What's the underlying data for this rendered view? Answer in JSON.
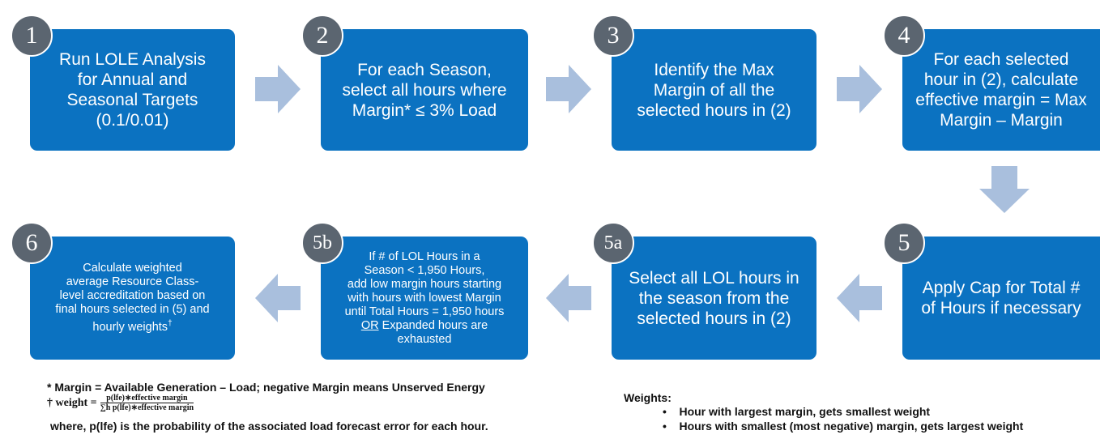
{
  "steps": [
    {
      "number": "1",
      "lines": [
        "Run LOLE Analysis",
        "for Annual and",
        "Seasonal Targets",
        "(0.1/0.01)"
      ]
    },
    {
      "number": "2",
      "lines": [
        "For each Season,",
        "select all hours where",
        "Margin* ≤ 3% Load"
      ]
    },
    {
      "number": "3",
      "lines": [
        "Identify the Max",
        "Margin of all the",
        "selected hours in (2)"
      ]
    },
    {
      "number": "4",
      "lines": [
        "For each selected",
        "hour in (2), calculate",
        "effective margin = Max",
        "Margin – Margin"
      ]
    },
    {
      "number": "5",
      "lines": [
        "Apply Cap for Total #",
        "of Hours if necessary"
      ]
    },
    {
      "number": "5a",
      "lines": [
        "Select all LOL hours in",
        "the season from the",
        "selected hours in (2)"
      ]
    },
    {
      "number": "5b",
      "lines": [
        "If # of LOL Hours in a",
        "Season < 1,950 Hours,",
        "add low margin hours starting",
        "with hours with lowest Margin",
        "until Total Hours = 1,950 hours",
        "OR",
        "Expanded hours are",
        "exhausted"
      ]
    },
    {
      "number": "6",
      "lines": [
        "Calculate weighted",
        "average Resource Class-",
        "level accreditation based on",
        "final hours selected in (5) and",
        "hourly weights",
        "†"
      ]
    }
  ],
  "footnotes": {
    "margin_note": "* Margin = Available Generation – Load; negative Margin means Unserved Energy",
    "weight_label": "† weight =",
    "weight_numerator": "p(lfe)∗effective margin",
    "weight_denominator": "∑h p(lfe)∗effective margin",
    "where_note": "where, p(lfe) is the probability of the associated load forecast error for each hour."
  },
  "weights": {
    "title": "Weights:",
    "items": [
      "Hour with largest margin, gets smallest weight",
      "Hours with smallest (most negative) margin, gets largest weight"
    ]
  }
}
